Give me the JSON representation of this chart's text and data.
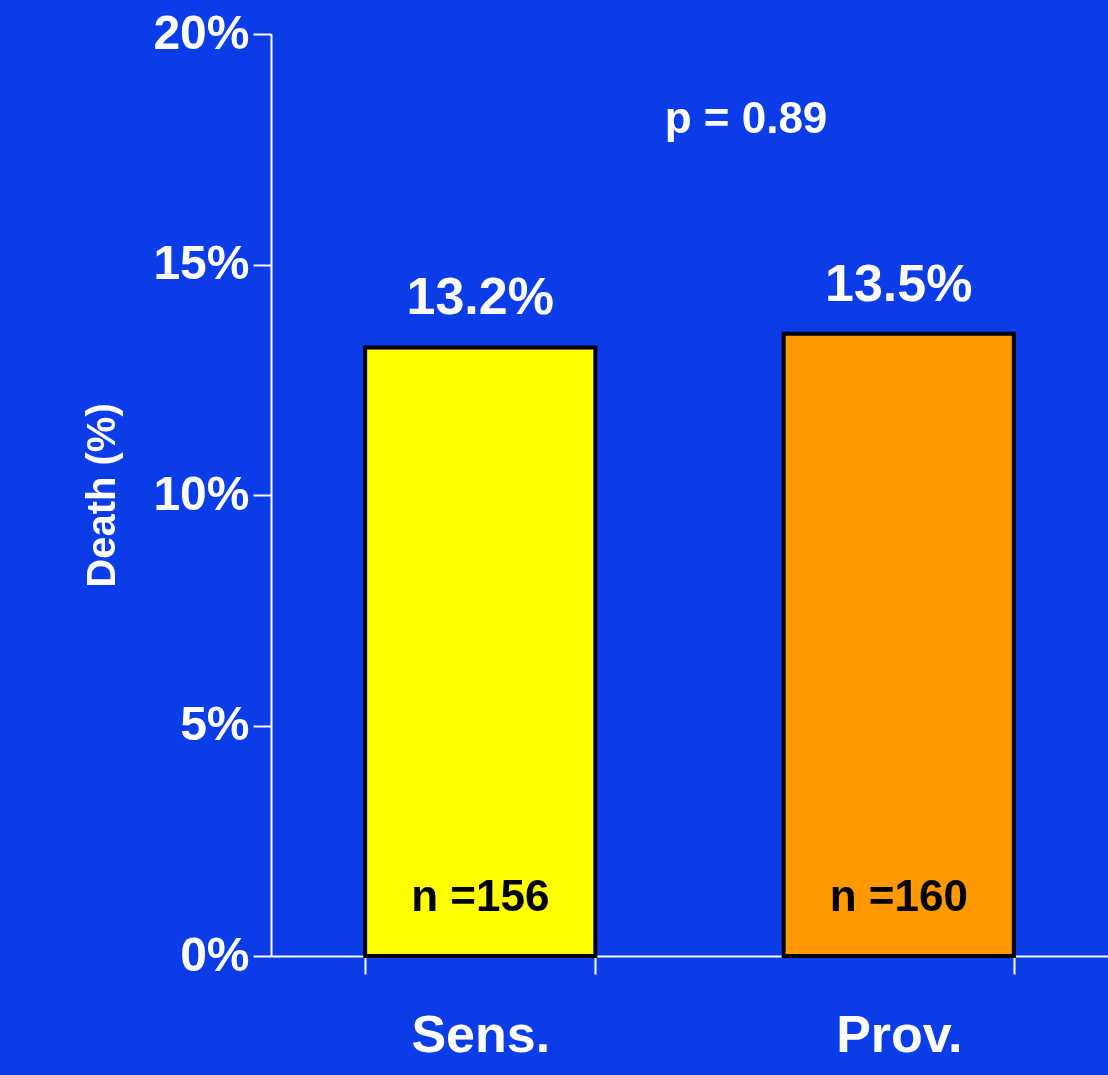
{
  "chart_data": {
    "type": "bar",
    "ylabel": "Death  (%)",
    "categories": [
      "Sens.",
      "Prov."
    ],
    "values": [
      13.2,
      13.5
    ],
    "colors": [
      "#ffff00",
      "#ff9900"
    ],
    "value_labels": [
      "13.2%",
      "13.5%"
    ],
    "ylim": [
      0,
      20
    ],
    "yticks": [
      {
        "value": 0,
        "label": "0%"
      },
      {
        "value": 5,
        "label": "5%"
      },
      {
        "value": 10,
        "label": "10%"
      },
      {
        "value": 15,
        "label": "15%"
      },
      {
        "value": 20,
        "label": "20%"
      }
    ],
    "annotations": [
      "p = 0.89",
      "n =156",
      "n =160"
    ],
    "grid": false
  }
}
